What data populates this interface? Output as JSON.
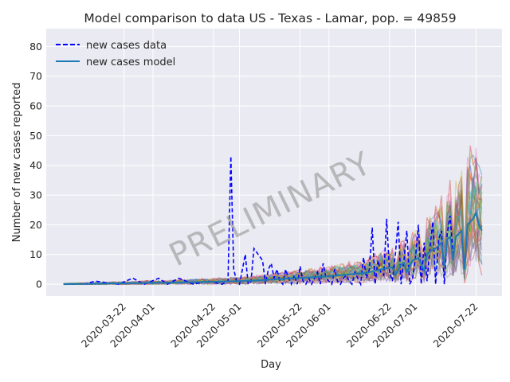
{
  "chart_data": {
    "type": "line",
    "title": "Model comparison to data US - Texas - Lamar, pop. = 49859",
    "xlabel": "Day",
    "ylabel": "Number of new cases reported",
    "watermark": "PRELIMINARY",
    "x_start": "2020-03-01",
    "x_end": "2020-07-24",
    "xlim": [
      "2020-02-24",
      "2020-07-31"
    ],
    "ylim": [
      -4,
      86
    ],
    "yticks": [
      0,
      10,
      20,
      30,
      40,
      50,
      60,
      70,
      80
    ],
    "xticks": [
      "2020-03-22",
      "2020-04-01",
      "2020-04-22",
      "2020-05-01",
      "2020-05-22",
      "2020-06-01",
      "2020-06-22",
      "2020-07-01",
      "2020-07-22"
    ],
    "grid": true,
    "legend_position": "top-left",
    "legend": [
      "new cases data",
      "new cases model"
    ],
    "colors": {
      "background": "#eaeaf2",
      "grid": "#ffffff",
      "data": "#0000ff",
      "model": "#1f77b4",
      "ensemble": [
        "#1f77b4",
        "#ff7f0e",
        "#2ca02c",
        "#d62728",
        "#9467bd",
        "#8c564b",
        "#e377c2",
        "#7f7f7f",
        "#bcbd22",
        "#17becf"
      ]
    },
    "series": [
      {
        "name": "new cases data",
        "style": "dashed",
        "x": [
          "2020-03-08",
          "2020-03-12",
          "2020-03-20",
          "2020-03-25",
          "2020-03-29",
          "2020-04-03",
          "2020-04-06",
          "2020-04-10",
          "2020-04-15",
          "2020-04-20",
          "2020-04-25",
          "2020-04-27",
          "2020-04-28",
          "2020-04-29",
          "2020-04-30",
          "2020-05-01",
          "2020-05-03",
          "2020-05-04",
          "2020-05-05",
          "2020-05-06",
          "2020-05-09",
          "2020-05-10",
          "2020-05-11",
          "2020-05-12",
          "2020-05-13",
          "2020-05-14",
          "2020-05-15",
          "2020-05-16",
          "2020-05-17",
          "2020-05-18",
          "2020-05-19",
          "2020-05-20",
          "2020-05-21",
          "2020-05-22",
          "2020-05-23",
          "2020-05-24",
          "2020-05-25",
          "2020-05-26",
          "2020-05-27",
          "2020-05-28",
          "2020-05-29",
          "2020-05-30",
          "2020-05-31",
          "2020-06-01",
          "2020-06-02",
          "2020-06-03",
          "2020-06-04",
          "2020-06-05",
          "2020-06-06",
          "2020-06-07",
          "2020-06-08",
          "2020-06-09",
          "2020-06-10",
          "2020-06-11",
          "2020-06-12",
          "2020-06-13",
          "2020-06-14",
          "2020-06-15",
          "2020-06-16",
          "2020-06-17",
          "2020-06-18",
          "2020-06-19",
          "2020-06-20",
          "2020-06-21",
          "2020-06-22",
          "2020-06-23",
          "2020-06-24",
          "2020-06-25",
          "2020-06-26",
          "2020-06-27",
          "2020-06-28",
          "2020-06-29",
          "2020-06-30",
          "2020-07-01",
          "2020-07-02",
          "2020-07-03",
          "2020-07-04",
          "2020-07-05",
          "2020-07-06",
          "2020-07-07",
          "2020-07-08",
          "2020-07-09",
          "2020-07-10",
          "2020-07-11",
          "2020-07-12",
          "2020-07-13",
          "2020-07-14"
        ],
        "y": [
          0,
          1,
          0,
          2,
          0,
          2,
          0,
          2,
          0,
          1,
          0,
          1,
          43,
          5,
          1,
          0,
          10,
          0,
          1,
          12,
          8,
          0,
          5,
          7,
          2,
          5,
          1,
          0,
          5,
          2,
          0,
          3,
          0,
          6,
          1,
          0,
          2,
          0,
          2,
          4,
          0,
          7,
          2,
          1,
          0,
          5,
          1,
          0,
          2,
          3,
          1,
          0,
          4,
          2,
          0,
          9,
          2,
          5,
          19,
          0,
          8,
          4,
          3,
          22,
          4,
          1,
          10,
          21,
          0,
          8,
          18,
          0,
          2,
          9,
          20,
          0,
          14,
          1,
          12,
          21,
          0,
          15,
          18,
          0,
          17,
          23,
          10
        ]
      },
      {
        "name": "new cases model",
        "style": "solid",
        "x": [
          "2020-03-01",
          "2020-03-15",
          "2020-03-29",
          "2020-04-12",
          "2020-04-26",
          "2020-05-03",
          "2020-05-10",
          "2020-05-17",
          "2020-05-24",
          "2020-05-31",
          "2020-06-07",
          "2020-06-14",
          "2020-06-17",
          "2020-06-20",
          "2020-06-23",
          "2020-06-24",
          "2020-06-26",
          "2020-06-27",
          "2020-06-28",
          "2020-06-30",
          "2020-07-02",
          "2020-07-04",
          "2020-07-05",
          "2020-07-06",
          "2020-07-08",
          "2020-07-10",
          "2020-07-11",
          "2020-07-12",
          "2020-07-13",
          "2020-07-14",
          "2020-07-15",
          "2020-07-16",
          "2020-07-17",
          "2020-07-18",
          "2020-07-19",
          "2020-07-20",
          "2020-07-21",
          "2020-07-22",
          "2020-07-23",
          "2020-07-24"
        ],
        "y": [
          0,
          0.2,
          0.4,
          0.6,
          0.9,
          1.1,
          1.4,
          1.8,
          2.2,
          2.6,
          3.2,
          3.8,
          4.5,
          5.2,
          5.7,
          3,
          6.5,
          7.2,
          4,
          8,
          8.8,
          4.5,
          10,
          11,
          12,
          14,
          6,
          15,
          16,
          8,
          16,
          17,
          18,
          5,
          20,
          21,
          22,
          24,
          20,
          18
        ]
      }
    ]
  }
}
